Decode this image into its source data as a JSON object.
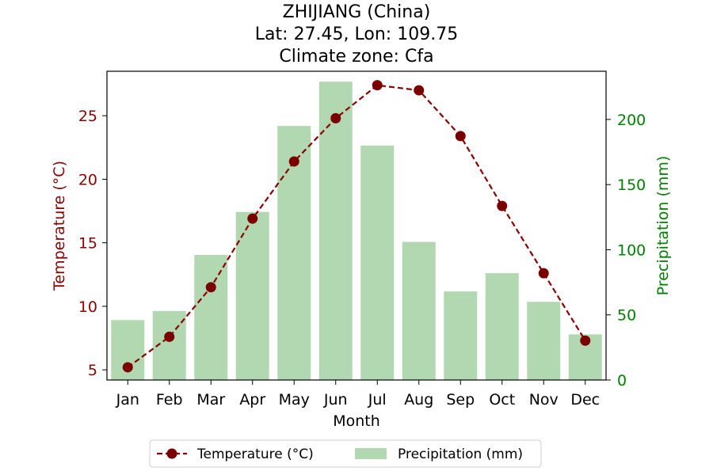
{
  "chart_data": {
    "type": "bar+line",
    "title_lines": [
      "ZHIJIANG (China)",
      "Lat: 27.45, Lon: 109.75",
      "Climate zone: Cfa"
    ],
    "categories": [
      "Jan",
      "Feb",
      "Mar",
      "Apr",
      "May",
      "Jun",
      "Jul",
      "Aug",
      "Sep",
      "Oct",
      "Nov",
      "Dec"
    ],
    "xlabel": "Month",
    "y_left_label": "Temperature (°C)",
    "y_right_label": "Precipitation (mm)",
    "y_left_range": [
      4.2,
      28.5
    ],
    "y_right_range": [
      0,
      237
    ],
    "y_left_ticks": [
      5,
      10,
      15,
      20,
      25
    ],
    "y_right_ticks": [
      0,
      50,
      100,
      150,
      200
    ],
    "grid": false,
    "legend_position": "bottom-center",
    "series": [
      {
        "name": "Temperature (°C)",
        "kind": "line",
        "style": "dashed-with-markers",
        "color": "#8b0000",
        "marker_color": "#7a0000",
        "axis": "left",
        "values": [
          5.2,
          7.6,
          11.5,
          16.9,
          21.4,
          24.8,
          27.4,
          27.0,
          23.4,
          17.9,
          12.6,
          7.3
        ]
      },
      {
        "name": "Precipitation (mm)",
        "kind": "bar",
        "color": "#b2d8b2",
        "axis": "right",
        "values": [
          46,
          53,
          96,
          129,
          195,
          229,
          180,
          106,
          68,
          82,
          60,
          35
        ]
      }
    ],
    "colors": {
      "left_axis": "#8b0000",
      "right_axis": "#008000",
      "text": "#000000"
    }
  }
}
